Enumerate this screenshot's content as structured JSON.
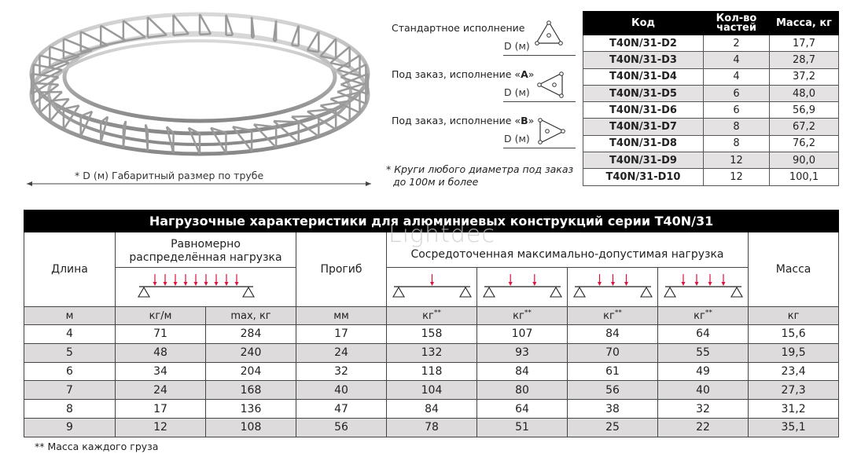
{
  "ring": {
    "caption": "* D (м)  Габаритный размер по трубе"
  },
  "profiles": [
    {
      "label": "Стандартное исполнение",
      "suffix": "",
      "dim": "D (м)",
      "icon": "triangle-up"
    },
    {
      "label": "Под заказ, исполнение «",
      "bold": "A",
      "suffix": "»",
      "dim": "D (м)",
      "icon": "triangle-left"
    },
    {
      "label": "Под заказ, исполнение «",
      "bold": "B",
      "suffix": "»",
      "dim": "D (м)",
      "icon": "triangle-right"
    }
  ],
  "note": {
    "line1": "* Круги любого диаметра под заказ",
    "line2": "до 100м и более"
  },
  "codes_table": {
    "headers": [
      "Код",
      "Кол-во частей",
      "Масса, кг"
    ],
    "rows": [
      [
        "T40N/31-D2",
        "2",
        "17,7"
      ],
      [
        "T40N/31-D3",
        "4",
        "28,7"
      ],
      [
        "T40N/31-D4",
        "4",
        "37,2"
      ],
      [
        "T40N/31-D5",
        "6",
        "48,0"
      ],
      [
        "T40N/31-D6",
        "6",
        "56,9"
      ],
      [
        "T40N/31-D7",
        "8",
        "67,2"
      ],
      [
        "T40N/31-D8",
        "8",
        "76,2"
      ],
      [
        "T40N/31-D9",
        "12",
        "90,0"
      ],
      [
        "T40N/31-D10",
        "12",
        "100,1"
      ]
    ]
  },
  "load_table": {
    "title": "Нагрузочные характеристики для алюминиевых конструкций серии T40N/31",
    "watermark": "Lightdec",
    "h_length": "Длина",
    "h_uniform_1": "Равномерно",
    "h_uniform_2": "распределённая нагрузка",
    "h_deflection": "Прогиб",
    "h_concentrated": "Сосредоточенная максимально-допустимая нагрузка",
    "h_mass": "Масса",
    "uniform_arrows": 9,
    "concentrated_arrows": [
      1,
      2,
      3,
      4
    ],
    "arrow_color": "#e0103a",
    "units": [
      "м",
      "кг/м",
      "max, кг",
      "мм",
      "кг**",
      "кг**",
      "кг**",
      "кг**",
      "кг"
    ],
    "rows": [
      [
        "4",
        "71",
        "284",
        "17",
        "158",
        "107",
        "84",
        "64",
        "15,6"
      ],
      [
        "5",
        "48",
        "240",
        "24",
        "132",
        "93",
        "70",
        "55",
        "19,5"
      ],
      [
        "6",
        "34",
        "204",
        "32",
        "118",
        "84",
        "61",
        "49",
        "23,4"
      ],
      [
        "7",
        "24",
        "168",
        "40",
        "104",
        "80",
        "56",
        "40",
        "27,3"
      ],
      [
        "8",
        "17",
        "136",
        "47",
        "84",
        "64",
        "38",
        "32",
        "31,2"
      ],
      [
        "9",
        "12",
        "108",
        "56",
        "78",
        "51",
        "25",
        "22",
        "35,1"
      ]
    ],
    "footnote": "** Масса каждого груза"
  }
}
